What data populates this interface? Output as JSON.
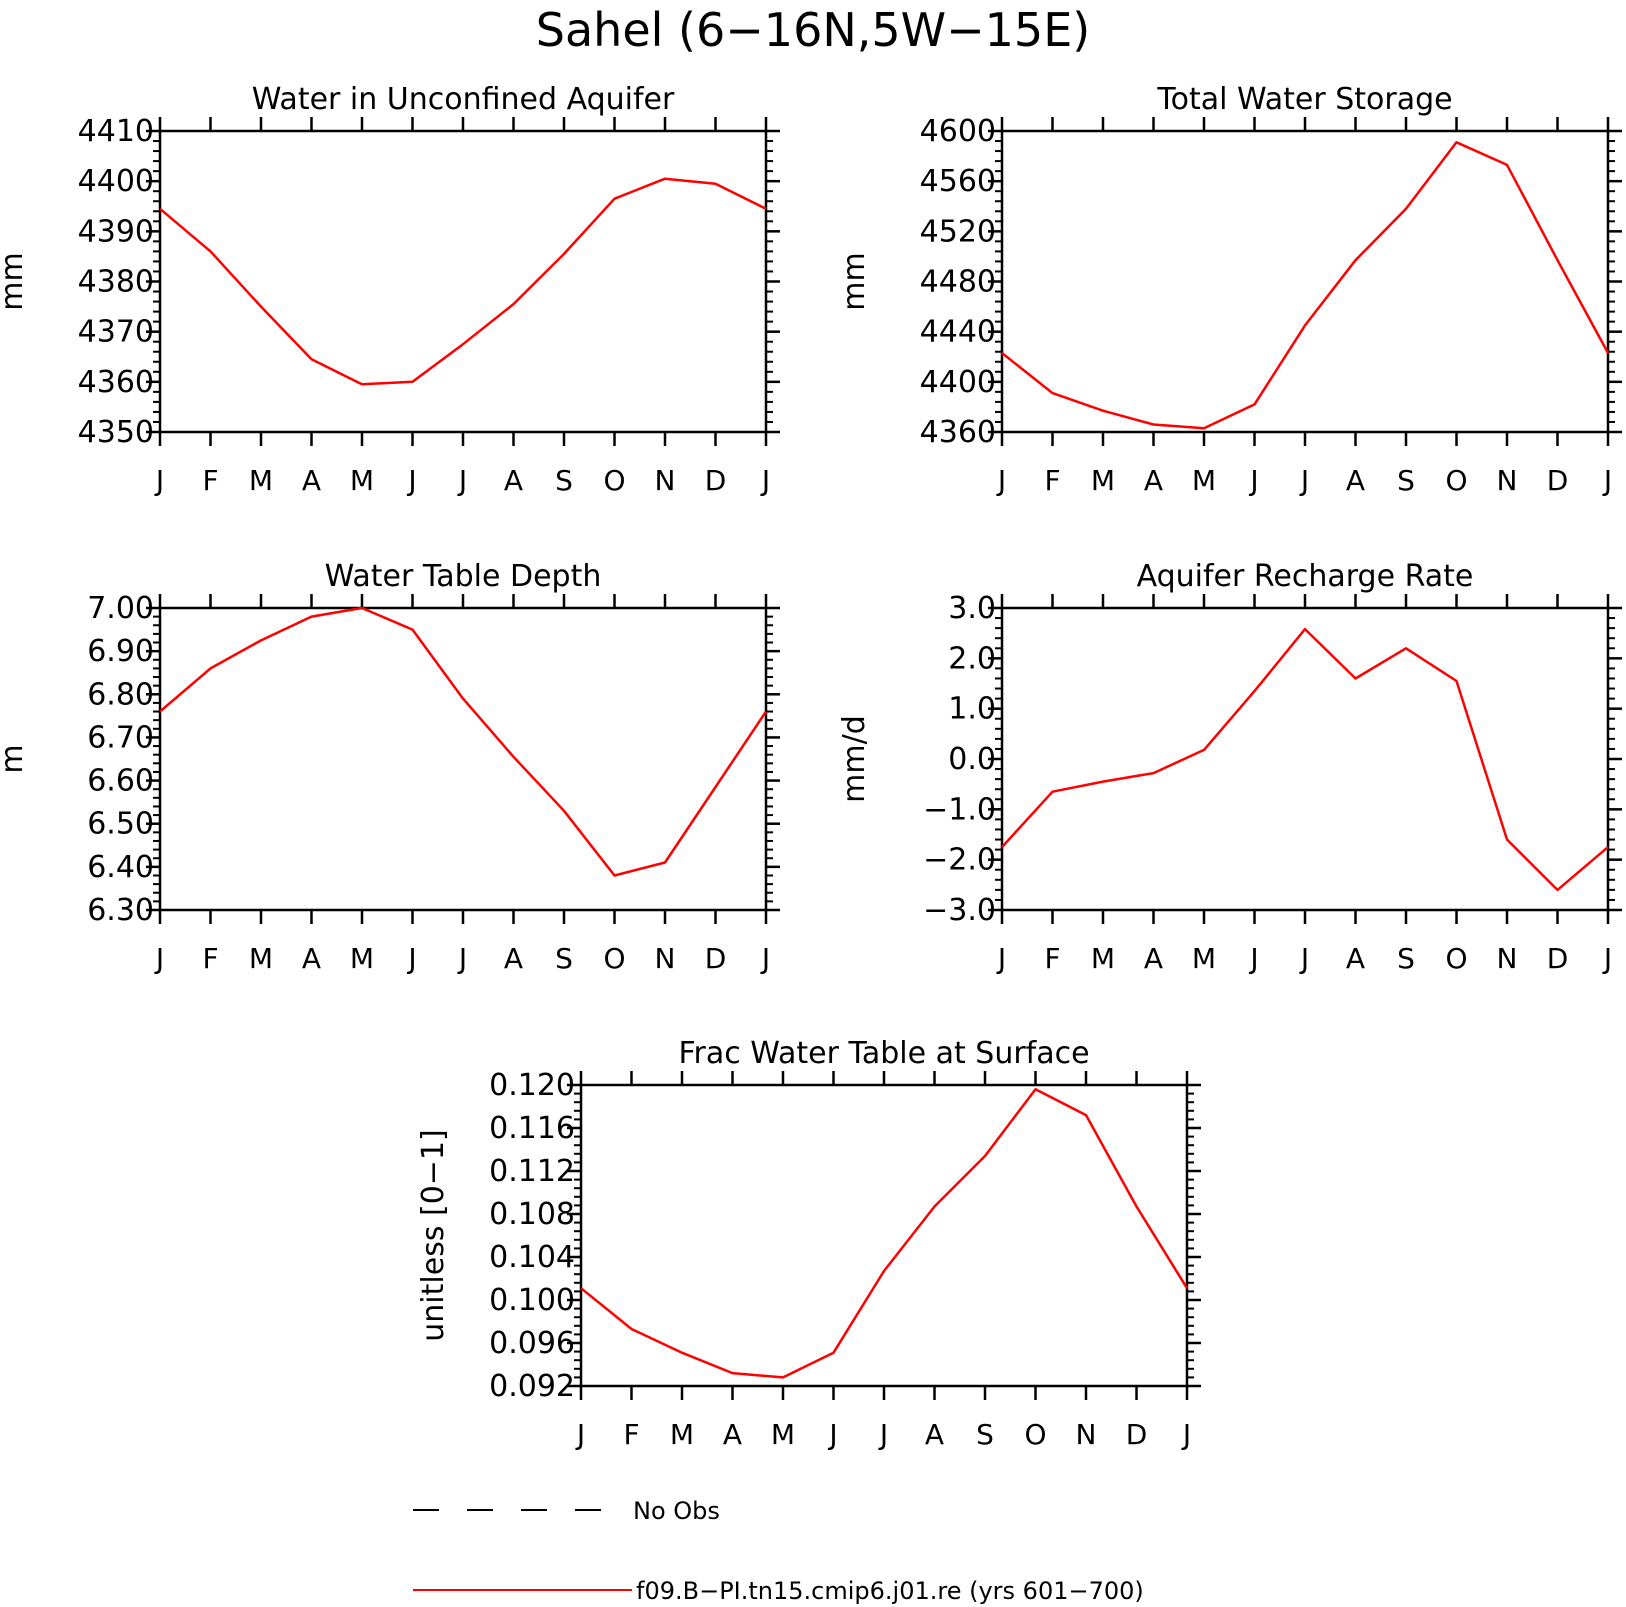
{
  "figure": {
    "title": "Sahel (6−16N,5W−15E)"
  },
  "legend": {
    "items": [
      {
        "label": "No Obs",
        "color": "#000000",
        "style": "dashed"
      },
      {
        "label": "f09.B−PI.tn15.cmip6.j01.re (yrs 601−700)",
        "color": "#ff0000",
        "style": "solid"
      }
    ]
  },
  "chart_data": [
    {
      "type": "line",
      "title": "Water in Unconfined Aquifer",
      "ylabel": "mm",
      "categories": [
        "J",
        "F",
        "M",
        "A",
        "M",
        "J",
        "J",
        "A",
        "S",
        "O",
        "N",
        "D",
        "J"
      ],
      "ylim": [
        4350,
        4410
      ],
      "yticks": [
        4350,
        4360,
        4370,
        4380,
        4390,
        4400,
        4410
      ],
      "ytick_labels": [
        "4350",
        "4360",
        "4370",
        "4380",
        "4390",
        "4400",
        "4410"
      ],
      "series": [
        {
          "color": "#ff0000",
          "values": [
            4394.5,
            4386,
            4375,
            4364.5,
            4359.5,
            4360,
            4367.5,
            4375.5,
            4385.5,
            4396.5,
            4400.5,
            4399.5,
            4394.5
          ]
        }
      ]
    },
    {
      "type": "line",
      "title": "Total Water Storage",
      "ylabel": "mm",
      "categories": [
        "J",
        "F",
        "M",
        "A",
        "M",
        "J",
        "J",
        "A",
        "S",
        "O",
        "N",
        "D",
        "J"
      ],
      "ylim": [
        4360,
        4600
      ],
      "yticks": [
        4360,
        4400,
        4440,
        4480,
        4520,
        4560,
        4600
      ],
      "ytick_labels": [
        "4360",
        "4400",
        "4440",
        "4480",
        "4520",
        "4560",
        "4600"
      ],
      "series": [
        {
          "color": "#ff0000",
          "values": [
            4423,
            4391,
            4377,
            4366,
            4363,
            4382,
            4445,
            4497,
            4538,
            4591,
            4573,
            4497,
            4423
          ]
        }
      ]
    },
    {
      "type": "line",
      "title": "Water Table Depth",
      "ylabel": "m",
      "categories": [
        "J",
        "F",
        "M",
        "A",
        "M",
        "J",
        "J",
        "A",
        "S",
        "O",
        "N",
        "D",
        "J"
      ],
      "ylim": [
        6.3,
        7.0
      ],
      "yticks": [
        6.3,
        6.4,
        6.5,
        6.6,
        6.7,
        6.8,
        6.9,
        7.0
      ],
      "ytick_labels": [
        "6.30",
        "6.40",
        "6.50",
        "6.60",
        "6.70",
        "6.80",
        "6.90",
        "7.00"
      ],
      "series": [
        {
          "color": "#ff0000",
          "values": [
            6.76,
            6.86,
            6.925,
            6.98,
            7.0,
            6.95,
            6.79,
            6.655,
            6.53,
            6.38,
            6.41,
            6.585,
            6.76
          ]
        }
      ]
    },
    {
      "type": "line",
      "title": "Aquifer Recharge Rate",
      "ylabel": "mm/d",
      "categories": [
        "J",
        "F",
        "M",
        "A",
        "M",
        "J",
        "J",
        "A",
        "S",
        "O",
        "N",
        "D",
        "J"
      ],
      "ylim": [
        -3.0,
        3.0
      ],
      "yticks": [
        -3.0,
        -2.0,
        -1.0,
        0.0,
        1.0,
        2.0,
        3.0
      ],
      "ytick_labels": [
        "−3.0",
        "−2.0",
        "−1.0",
        "0.0",
        "1.0",
        "2.0",
        "3.0"
      ],
      "series": [
        {
          "color": "#ff0000",
          "values": [
            -1.75,
            -0.65,
            -0.45,
            -0.28,
            0.18,
            1.35,
            2.58,
            1.6,
            2.2,
            1.55,
            -1.6,
            -2.6,
            -1.75
          ]
        }
      ]
    },
    {
      "type": "line",
      "title": "Frac Water Table at Surface",
      "ylabel": "unitless [0−1]",
      "categories": [
        "J",
        "F",
        "M",
        "A",
        "M",
        "J",
        "J",
        "A",
        "S",
        "O",
        "N",
        "D",
        "J"
      ],
      "ylim": [
        0.092,
        0.12
      ],
      "yticks": [
        0.092,
        0.096,
        0.1,
        0.104,
        0.108,
        0.112,
        0.116,
        0.12
      ],
      "ytick_labels": [
        "0.092",
        "0.096",
        "0.100",
        "0.104",
        "0.108",
        "0.112",
        "0.116",
        "0.120"
      ],
      "series": [
        {
          "color": "#ff0000",
          "values": [
            0.1011,
            0.0973,
            0.0951,
            0.0932,
            0.0928,
            0.0951,
            0.1027,
            0.1087,
            0.1134,
            0.1196,
            0.1172,
            0.1087,
            0.1011
          ]
        }
      ]
    }
  ]
}
